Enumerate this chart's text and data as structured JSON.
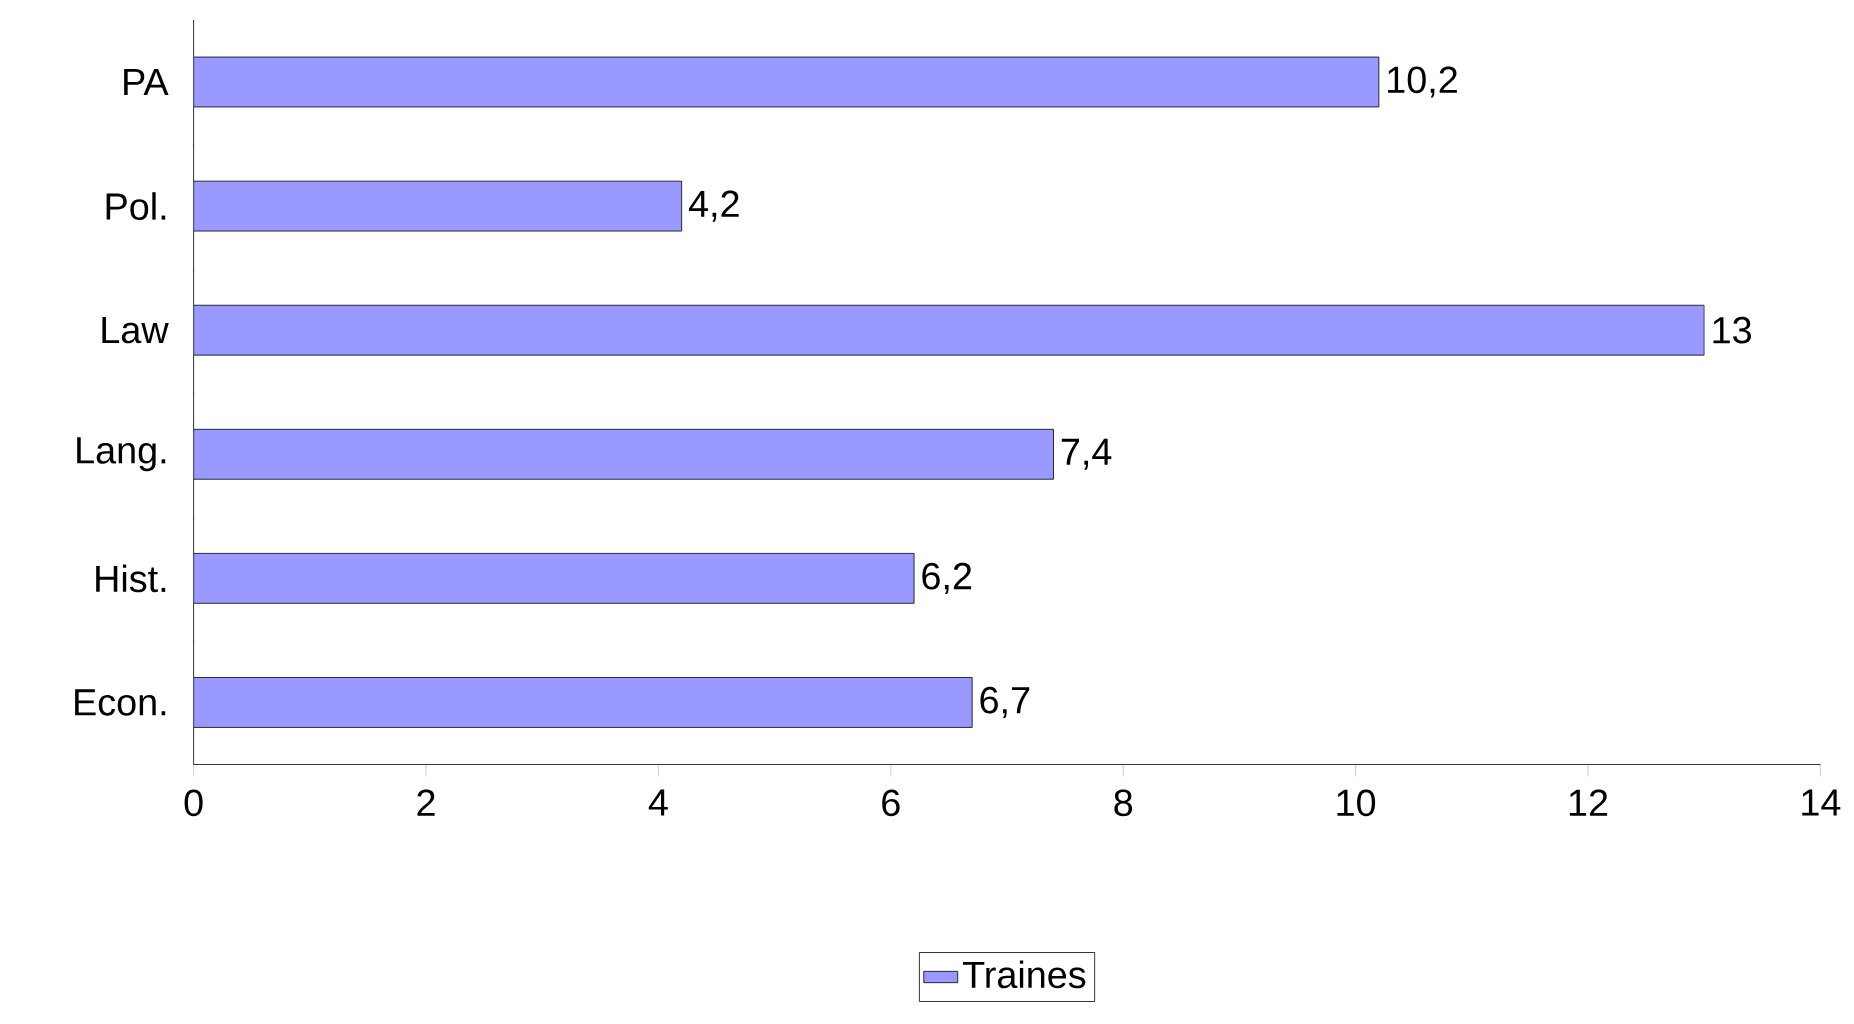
{
  "chart_data": {
    "type": "bar",
    "orientation": "horizontal",
    "categories": [
      "PA",
      "Pol.",
      "Law",
      "Lang.",
      "Hist.",
      "Econ."
    ],
    "series": [
      {
        "name": "Traines",
        "color": "#9999ff",
        "values": [
          10.2,
          4.2,
          13,
          7.4,
          6.2,
          6.7
        ],
        "value_labels": [
          "10,2",
          "4,2",
          "13",
          "7,4",
          "6,2",
          "6,7"
        ]
      }
    ],
    "xlim": [
      0,
      14
    ],
    "xticks": [
      0,
      2,
      4,
      6,
      8,
      10,
      12,
      14
    ],
    "legend": "bottom"
  }
}
